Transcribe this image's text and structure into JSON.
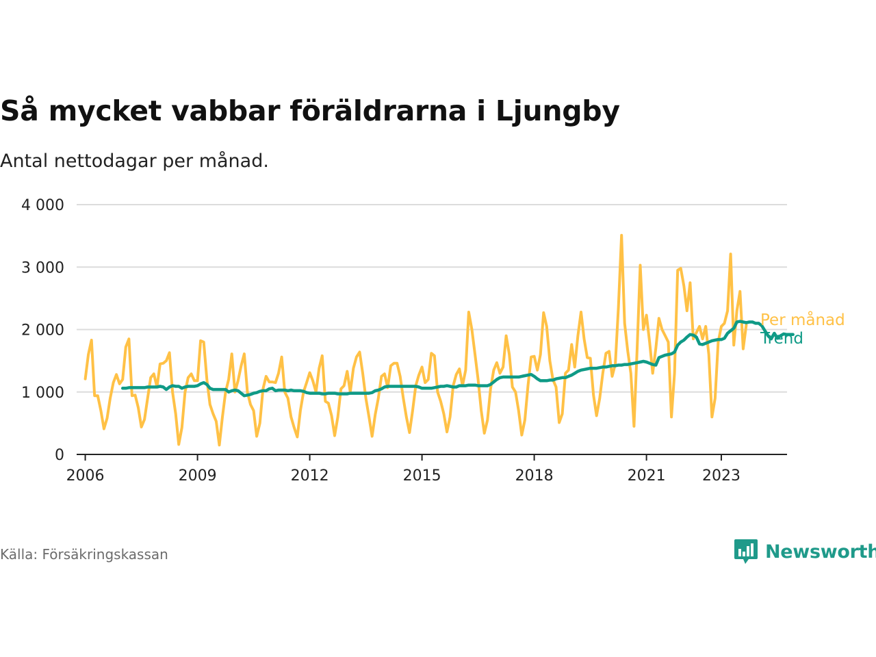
{
  "title": "Så mycket vabbar föräldrarna i Ljungby",
  "subtitle": "Antal nettodagar per månad.",
  "source": "Källa: Försäkringskassan",
  "brand": {
    "name": "Newsworthy",
    "icon": "newsworthy-logo-icon",
    "color": "#1f9a8a"
  },
  "chart_data": {
    "type": "line",
    "title": "Så mycket vabbar föräldrarna i Ljungby",
    "subtitle": "Antal nettodagar per månad.",
    "xlabel": "",
    "ylabel": "",
    "xlim": [
      "2006-01",
      "2023-12"
    ],
    "ylim": [
      0,
      4000
    ],
    "yticks": [
      0,
      1000,
      2000,
      3000,
      4000
    ],
    "ytick_labels": [
      "0",
      "1 000",
      "2 000",
      "3 000",
      "4 000"
    ],
    "xticks": [
      "2006",
      "2009",
      "2012",
      "2015",
      "2018",
      "2021",
      "2023"
    ],
    "grid": true,
    "legend": "direct labels at line ends",
    "series": [
      {
        "name": "Per månad",
        "color": "#ffc146",
        "start": "2006-01",
        "frequency": "monthly",
        "values": [
          1210,
          1600,
          1830,
          940,
          940,
          700,
          410,
          580,
          900,
          1150,
          1280,
          1130,
          1200,
          1720,
          1850,
          940,
          950,
          750,
          440,
          560,
          900,
          1230,
          1290,
          1080,
          1450,
          1460,
          1500,
          1630,
          1000,
          650,
          160,
          430,
          1000,
          1230,
          1290,
          1180,
          1180,
          1820,
          1800,
          1200,
          800,
          650,
          530,
          150,
          600,
          1000,
          1200,
          1610,
          1000,
          1180,
          1420,
          1610,
          1000,
          800,
          700,
          290,
          500,
          1050,
          1250,
          1160,
          1160,
          1150,
          1300,
          1560,
          1000,
          900,
          600,
          430,
          280,
          700,
          1000,
          1150,
          1310,
          1180,
          1000,
          1380,
          1580,
          850,
          820,
          620,
          300,
          600,
          1050,
          1100,
          1330,
          1000,
          1380,
          1560,
          1640,
          1300,
          900,
          600,
          290,
          640,
          900,
          1250,
          1290,
          1070,
          1420,
          1460,
          1460,
          1250,
          900,
          600,
          350,
          700,
          1100,
          1270,
          1400,
          1150,
          1200,
          1620,
          1580,
          1000,
          850,
          650,
          360,
          600,
          1100,
          1280,
          1370,
          1100,
          1350,
          2280,
          2000,
          1600,
          1200,
          700,
          340,
          550,
          1050,
          1350,
          1470,
          1300,
          1400,
          1900,
          1600,
          1080,
          1000,
          700,
          310,
          550,
          1100,
          1560,
          1570,
          1350,
          1600,
          2270,
          2050,
          1500,
          1200,
          1080,
          510,
          650,
          1300,
          1350,
          1760,
          1400,
          1900,
          2280,
          1850,
          1550,
          1540,
          950,
          620,
          900,
          1300,
          1620,
          1650,
          1250,
          1450,
          2350,
          3510,
          2100,
          1650,
          1300,
          450,
          1700,
          3030,
          2000,
          2230,
          1800,
          1300,
          1700,
          2180,
          2000,
          1900,
          1800,
          600,
          1300,
          2950,
          2980,
          2700,
          2300,
          2750,
          1850,
          1950,
          2050,
          1850,
          2050,
          1600,
          600,
          900,
          1800,
          2050,
          2100,
          2300,
          3210,
          1750,
          2300,
          2610,
          1690,
          2070
        ]
      },
      {
        "name": "Trend",
        "color": "#0f9a86",
        "start": "2007-01",
        "frequency": "monthly",
        "values": [
          1060,
          1060,
          1070,
          1070,
          1070,
          1070,
          1070,
          1070,
          1080,
          1080,
          1080,
          1080,
          1090,
          1080,
          1040,
          1080,
          1100,
          1090,
          1090,
          1060,
          1080,
          1090,
          1090,
          1090,
          1100,
          1130,
          1150,
          1120,
          1060,
          1040,
          1040,
          1040,
          1040,
          1040,
          1000,
          1020,
          1030,
          1020,
          980,
          940,
          950,
          960,
          980,
          990,
          1010,
          1020,
          1020,
          1050,
          1060,
          1020,
          1030,
          1030,
          1030,
          1020,
          1030,
          1020,
          1020,
          1020,
          1010,
          990,
          980,
          980,
          980,
          980,
          970,
          970,
          980,
          980,
          980,
          970,
          970,
          970,
          970,
          980,
          980,
          980,
          980,
          980,
          980,
          980,
          990,
          1020,
          1030,
          1050,
          1080,
          1090,
          1090,
          1090,
          1090,
          1090,
          1090,
          1090,
          1090,
          1090,
          1090,
          1080,
          1060,
          1060,
          1060,
          1060,
          1070,
          1080,
          1090,
          1090,
          1100,
          1090,
          1080,
          1080,
          1100,
          1100,
          1100,
          1110,
          1110,
          1110,
          1100,
          1100,
          1100,
          1100,
          1120,
          1160,
          1200,
          1230,
          1240,
          1240,
          1240,
          1240,
          1240,
          1240,
          1250,
          1260,
          1270,
          1280,
          1250,
          1210,
          1180,
          1180,
          1180,
          1190,
          1190,
          1210,
          1220,
          1230,
          1230,
          1250,
          1270,
          1300,
          1330,
          1350,
          1360,
          1370,
          1380,
          1380,
          1380,
          1390,
          1400,
          1400,
          1410,
          1420,
          1420,
          1430,
          1430,
          1440,
          1440,
          1450,
          1460,
          1470,
          1480,
          1490,
          1480,
          1460,
          1440,
          1430,
          1550,
          1570,
          1590,
          1600,
          1610,
          1640,
          1750,
          1800,
          1830,
          1880,
          1920,
          1910,
          1880,
          1770,
          1760,
          1780,
          1800,
          1820,
          1830,
          1840,
          1840,
          1860,
          1940,
          1980,
          2020,
          2120,
          2130,
          2120,
          2110,
          2120,
          2120,
          2100,
          2100,
          2060,
          1980,
          1900,
          1850,
          1940,
          1860,
          1900,
          1930,
          1920,
          1920,
          1920
        ]
      }
    ]
  }
}
